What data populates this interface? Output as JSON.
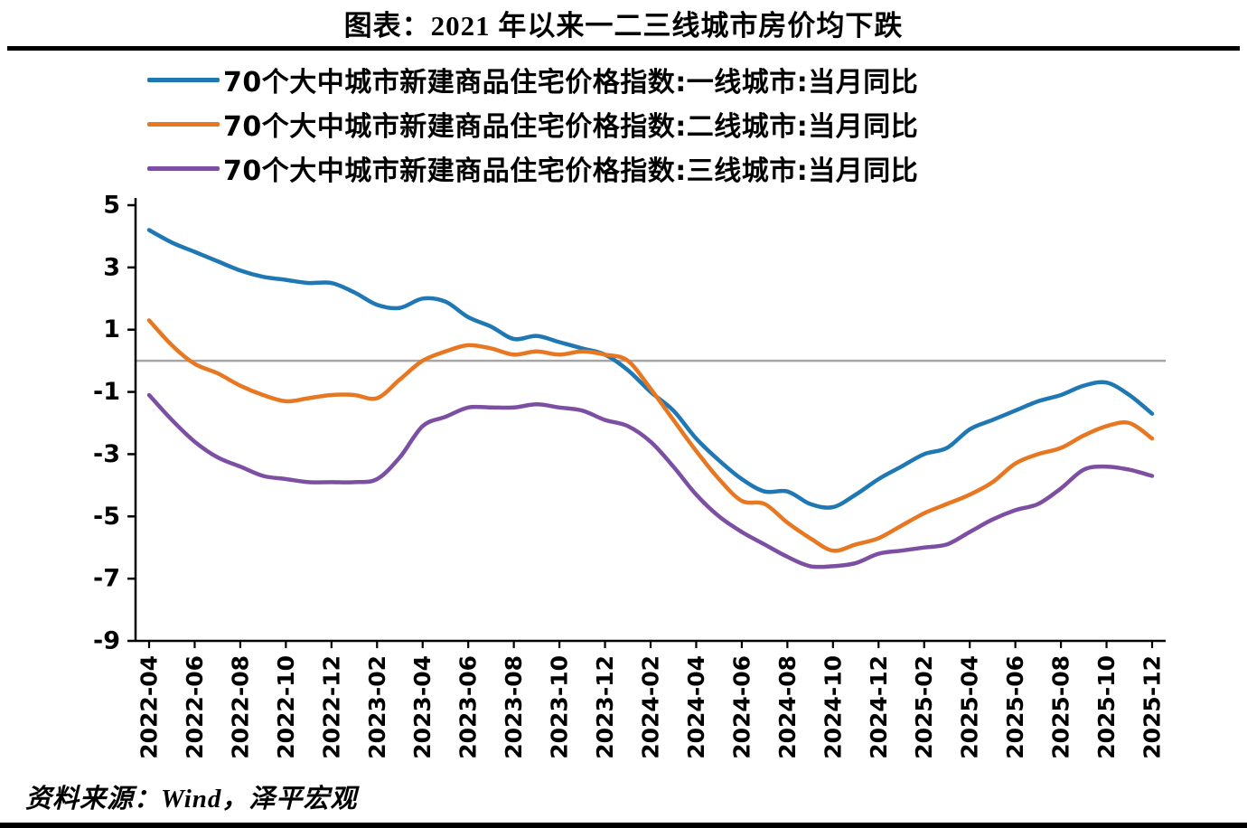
{
  "title": "图表：2021 年以来一二三线城市房价均下跌",
  "source": "资料来源：Wind，泽平宏观",
  "colors": {
    "tier1": "#1F78B4",
    "tier2": "#E87722",
    "tier3": "#7D4FA3",
    "zero_line": "#A6A6A6",
    "axis": "#000000",
    "rule": "#000000"
  },
  "chart_data": {
    "type": "line",
    "title": "图表：2021 年以来一二三线城市房价均下跌",
    "ylim": [
      -9,
      5
    ],
    "yticks": [
      5,
      3,
      1,
      -1,
      -3,
      -5,
      -7,
      -9
    ],
    "x_label_every": 2,
    "grid": false,
    "legend_position": "top-left",
    "zero_line": true,
    "x": [
      "2022-04",
      "2022-05",
      "2022-06",
      "2022-07",
      "2022-08",
      "2022-09",
      "2022-10",
      "2022-11",
      "2022-12",
      "2023-01",
      "2023-02",
      "2023-03",
      "2023-04",
      "2023-05",
      "2023-06",
      "2023-07",
      "2023-08",
      "2023-09",
      "2023-10",
      "2023-11",
      "2023-12",
      "2024-01",
      "2024-02",
      "2024-03",
      "2024-04",
      "2024-05",
      "2024-06",
      "2024-07",
      "2024-08",
      "2024-09",
      "2024-10",
      "2024-11",
      "2024-12",
      "2025-01",
      "2025-02",
      "2025-03",
      "2025-04",
      "2025-05",
      "2025-06",
      "2025-07",
      "2025-08",
      "2025-09",
      "2025-10",
      "2025-11",
      "2025-12"
    ],
    "series": [
      {
        "name": "70个大中城市新建商品住宅价格指数:一线城市:当月同比",
        "color": "#1F78B4",
        "values": [
          4.2,
          3.8,
          3.5,
          3.2,
          2.9,
          2.7,
          2.6,
          2.5,
          2.5,
          2.2,
          1.8,
          1.7,
          2.0,
          1.9,
          1.4,
          1.1,
          0.7,
          0.8,
          0.6,
          0.4,
          0.2,
          -0.3,
          -1.0,
          -1.6,
          -2.5,
          -3.2,
          -3.8,
          -4.2,
          -4.2,
          -4.6,
          -4.7,
          -4.3,
          -3.8,
          -3.4,
          -3.0,
          -2.8,
          -2.2,
          -1.9,
          -1.6,
          -1.3,
          -1.1,
          -0.8,
          -0.7,
          -1.1,
          -1.7
        ]
      },
      {
        "name": "70个大中城市新建商品住宅价格指数:二线城市:当月同比",
        "color": "#E87722",
        "values": [
          1.3,
          0.5,
          -0.1,
          -0.4,
          -0.8,
          -1.1,
          -1.3,
          -1.2,
          -1.1,
          -1.1,
          -1.2,
          -0.6,
          0.0,
          0.3,
          0.5,
          0.4,
          0.2,
          0.3,
          0.2,
          0.3,
          0.2,
          0.0,
          -0.9,
          -1.9,
          -2.9,
          -3.8,
          -4.5,
          -4.6,
          -5.2,
          -5.7,
          -6.1,
          -5.9,
          -5.7,
          -5.3,
          -4.9,
          -4.6,
          -4.3,
          -3.9,
          -3.3,
          -3.0,
          -2.8,
          -2.4,
          -2.1,
          -2.0,
          -2.5
        ]
      },
      {
        "name": "70个大中城市新建商品住宅价格指数:三线城市:当月同比",
        "color": "#7D4FA3",
        "values": [
          -1.1,
          -1.9,
          -2.6,
          -3.1,
          -3.4,
          -3.7,
          -3.8,
          -3.9,
          -3.9,
          -3.9,
          -3.8,
          -3.1,
          -2.1,
          -1.8,
          -1.5,
          -1.5,
          -1.5,
          -1.4,
          -1.5,
          -1.6,
          -1.9,
          -2.1,
          -2.6,
          -3.4,
          -4.3,
          -5.0,
          -5.5,
          -5.9,
          -6.3,
          -6.6,
          -6.6,
          -6.5,
          -6.2,
          -6.1,
          -6.0,
          -5.9,
          -5.5,
          -5.1,
          -4.8,
          -4.6,
          -4.1,
          -3.5,
          -3.4,
          -3.5,
          -3.7
        ]
      }
    ]
  }
}
